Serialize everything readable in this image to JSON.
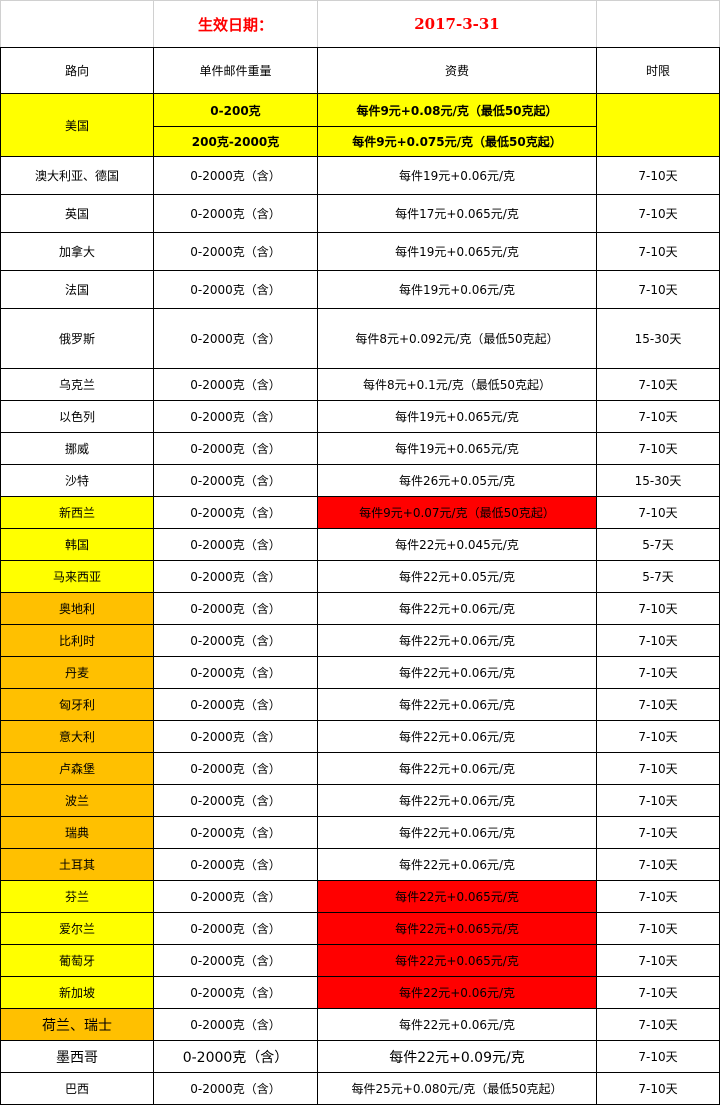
{
  "title_row": {
    "label": "生效日期：",
    "date": "2017-3-31"
  },
  "headers": [
    "路向",
    "单件邮件重量",
    "资费",
    "时限"
  ],
  "colors": {
    "yellow": "#ffff00",
    "orange": "#ffc000",
    "red": "#ff0000"
  },
  "usa": {
    "route": "美国",
    "tiers": [
      {
        "weight": "0-200克",
        "price": "每件9元+0.08元/克（最低50克起）"
      },
      {
        "weight": "200克-2000克",
        "price": "每件9元+0.075元/克（最低50克起）"
      }
    ],
    "time": ""
  },
  "rows": [
    {
      "route": "澳大利亚、德国",
      "weight": "0-2000克（含）",
      "price": "每件19元+0.06元/克",
      "time": "7-10天"
    },
    {
      "route": "英国",
      "weight": "0-2000克（含）",
      "price": "每件17元+0.065元/克",
      "time": "7-10天"
    },
    {
      "route": "加拿大",
      "weight": "0-2000克（含）",
      "price": "每件19元+0.065元/克",
      "time": "7-10天"
    },
    {
      "route": "法国",
      "weight": "0-2000克（含）",
      "price": "每件19元+0.06元/克",
      "time": "7-10天"
    },
    {
      "route": "俄罗斯",
      "weight": "0-2000克（含）",
      "price": "每件8元+0.092元/克（最低50克起）",
      "time": "15-30天"
    },
    {
      "route": "乌克兰",
      "weight": "0-2000克（含）",
      "price": "每件8元+0.1元/克（最低50克起）",
      "time": "7-10天"
    },
    {
      "route": "以色列",
      "weight": "0-2000克（含）",
      "price": "每件19元+0.065元/克",
      "time": "7-10天"
    },
    {
      "route": "挪威",
      "weight": "0-2000克（含）",
      "price": "每件19元+0.065元/克",
      "time": "7-10天"
    },
    {
      "route": "沙特",
      "weight": "0-2000克（含）",
      "price": "每件26元+0.05元/克",
      "time": "15-30天"
    },
    {
      "route": "新西兰",
      "weight": "0-2000克（含）",
      "price": "每件9元+0.07元/克（最低50克起）",
      "time": "7-10天",
      "route_bg": "yellow",
      "price_bg": "red"
    },
    {
      "route": "韩国",
      "weight": "0-2000克（含）",
      "price": "每件22元+0.045元/克",
      "time": "5-7天",
      "route_bg": "yellow"
    },
    {
      "route": "马来西亚",
      "weight": "0-2000克（含）",
      "price": "每件22元+0.05元/克",
      "time": "5-7天",
      "route_bg": "yellow"
    },
    {
      "route": "奥地利",
      "weight": "0-2000克（含）",
      "price": "每件22元+0.06元/克",
      "time": "7-10天",
      "route_bg": "orange"
    },
    {
      "route": "比利时",
      "weight": "0-2000克（含）",
      "price": "每件22元+0.06元/克",
      "time": "7-10天",
      "route_bg": "orange"
    },
    {
      "route": "丹麦",
      "weight": "0-2000克（含）",
      "price": "每件22元+0.06元/克",
      "time": "7-10天",
      "route_bg": "orange"
    },
    {
      "route": "匈牙利",
      "weight": "0-2000克（含）",
      "price": "每件22元+0.06元/克",
      "time": "7-10天",
      "route_bg": "orange"
    },
    {
      "route": "意大利",
      "weight": "0-2000克（含）",
      "price": "每件22元+0.06元/克",
      "time": "7-10天",
      "route_bg": "orange"
    },
    {
      "route": "卢森堡",
      "weight": "0-2000克（含）",
      "price": "每件22元+0.06元/克",
      "time": "7-10天",
      "route_bg": "orange"
    },
    {
      "route": "波兰",
      "weight": "0-2000克（含）",
      "price": "每件22元+0.06元/克",
      "time": "7-10天",
      "route_bg": "orange"
    },
    {
      "route": "瑞典",
      "weight": "0-2000克（含）",
      "price": "每件22元+0.06元/克",
      "time": "7-10天",
      "route_bg": "orange"
    },
    {
      "route": "土耳其",
      "weight": "0-2000克（含）",
      "price": "每件22元+0.06元/克",
      "time": "7-10天",
      "route_bg": "orange"
    },
    {
      "route": "芬兰",
      "weight": "0-2000克（含）",
      "price": "每件22元+0.065元/克",
      "time": "7-10天",
      "route_bg": "yellow",
      "price_bg": "red"
    },
    {
      "route": "爱尔兰",
      "weight": "0-2000克（含）",
      "price": "每件22元+0.065元/克",
      "time": "7-10天",
      "route_bg": "yellow",
      "price_bg": "red"
    },
    {
      "route": "葡萄牙",
      "weight": "0-2000克（含）",
      "price": "每件22元+0.065元/克",
      "time": "7-10天",
      "route_bg": "yellow",
      "price_bg": "red"
    },
    {
      "route": "新加坡",
      "weight": "0-2000克（含）",
      "price": "每件22元+0.06元/克",
      "time": "7-10天",
      "route_bg": "yellow",
      "price_bg": "red"
    },
    {
      "route": "荷兰、瑞士",
      "weight": "0-2000克（含）",
      "price": "每件22元+0.06元/克",
      "time": "7-10天",
      "route_bg": "orange"
    },
    {
      "route": "墨西哥",
      "weight": "0-2000克（含）",
      "price": "每件22元+0.09元/克",
      "time": "7-10天"
    },
    {
      "route": "巴西",
      "weight": "0-2000克（含）",
      "price": "每件25元+0.080元/克（最低50克起）",
      "time": "7-10天"
    }
  ]
}
